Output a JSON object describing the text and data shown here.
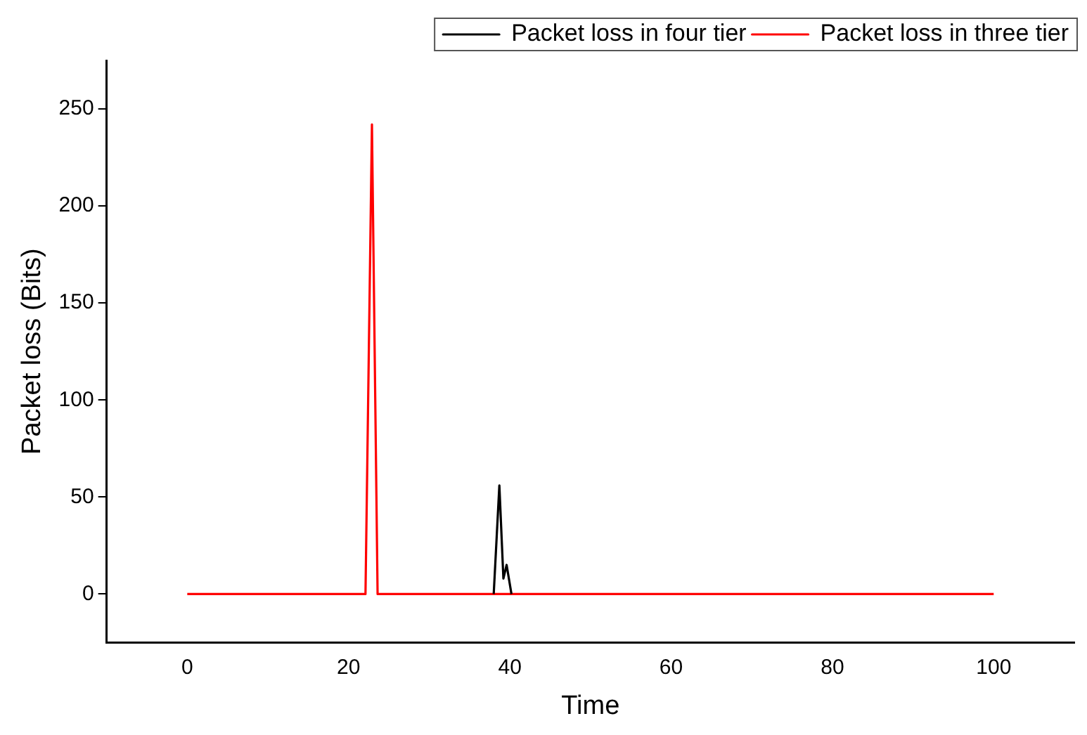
{
  "chart_data": {
    "type": "line",
    "xlabel": "Time",
    "ylabel": "Packet loss (Bits)",
    "xlim": [
      -10,
      110
    ],
    "xticks": [
      0,
      20,
      40,
      60,
      80,
      100
    ],
    "ylim": [
      -25,
      275
    ],
    "yticks": [
      0,
      50,
      100,
      150,
      200,
      250
    ],
    "grid": false,
    "legend": "top right",
    "marker": "none",
    "line_style": "solid",
    "series": [
      {
        "name": "Packet loss in four tier",
        "color": "#000000",
        "x": [
          38,
          38.7,
          39.2,
          39.6,
          40.2
        ],
        "values": [
          0,
          56,
          8,
          15,
          0
        ]
      },
      {
        "name": "Packet loss in three tier",
        "color": "#ff0000",
        "x": [
          0,
          22.1,
          22.9,
          23.6,
          100
        ],
        "values": [
          0,
          0,
          242,
          0,
          0
        ]
      }
    ]
  }
}
